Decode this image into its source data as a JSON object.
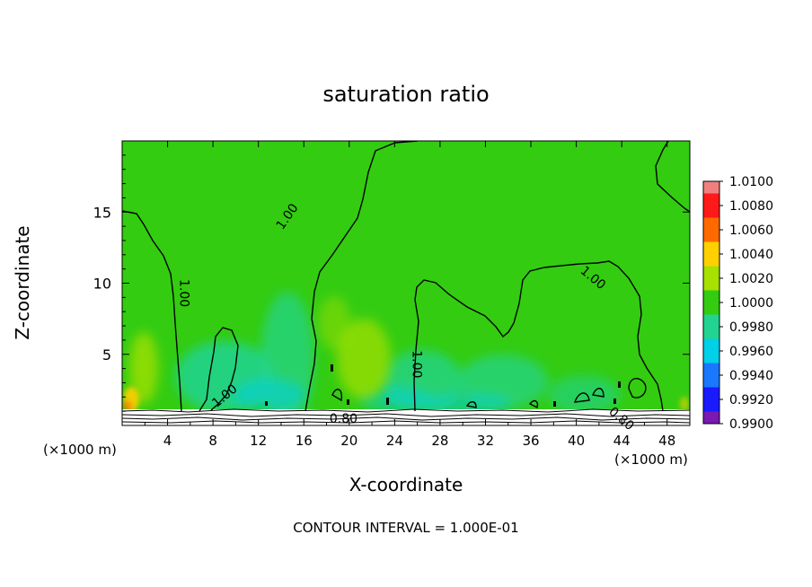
{
  "chart_data": {
    "type": "heatmap",
    "title": "saturation ratio",
    "xlabel": "X-coordinate",
    "ylabel": "Z-coordinate",
    "x_unit_left": "(×1000 m)",
    "x_unit_right": "(×1000 m)",
    "xlim": [
      0,
      50
    ],
    "ylim": [
      0,
      20
    ],
    "x_ticks": [
      4,
      8,
      12,
      16,
      20,
      24,
      28,
      32,
      36,
      40,
      44,
      48
    ],
    "y_ticks": [
      5,
      10,
      15
    ],
    "footer": "CONTOUR INTERVAL = 1.000E-01",
    "colorbar": {
      "levels": [
        "1.0100",
        "1.0080",
        "1.0060",
        "1.0040",
        "1.0020",
        "1.0000",
        "0.9980",
        "0.9960",
        "0.9940",
        "0.9920",
        "0.9900"
      ],
      "colors": [
        "#f08080",
        "#ff1a1a",
        "#ff6a00",
        "#ffd000",
        "#a8e000",
        "#33cc11",
        "#22d490",
        "#00d0e8",
        "#1a78ff",
        "#1a1aff",
        "#7a1ab0"
      ]
    },
    "background_value": 1.0,
    "background_color": "#33cc11",
    "contour_labels": [
      {
        "text": "1.00",
        "x": 14.5,
        "z": 14.7
      },
      {
        "text": "1.00",
        "x": 5.5,
        "z": 9.3
      },
      {
        "text": "1.00",
        "x": 9.0,
        "z": 2.1
      },
      {
        "text": "1.00",
        "x": 26.0,
        "z": 4.3
      },
      {
        "text": "1.00",
        "x": 41.5,
        "z": 10.4
      },
      {
        "text": "0.80",
        "x": 19.5,
        "z": 0.5
      },
      {
        "text": "0.80",
        "x": 44.0,
        "z": 0.5
      }
    ]
  }
}
